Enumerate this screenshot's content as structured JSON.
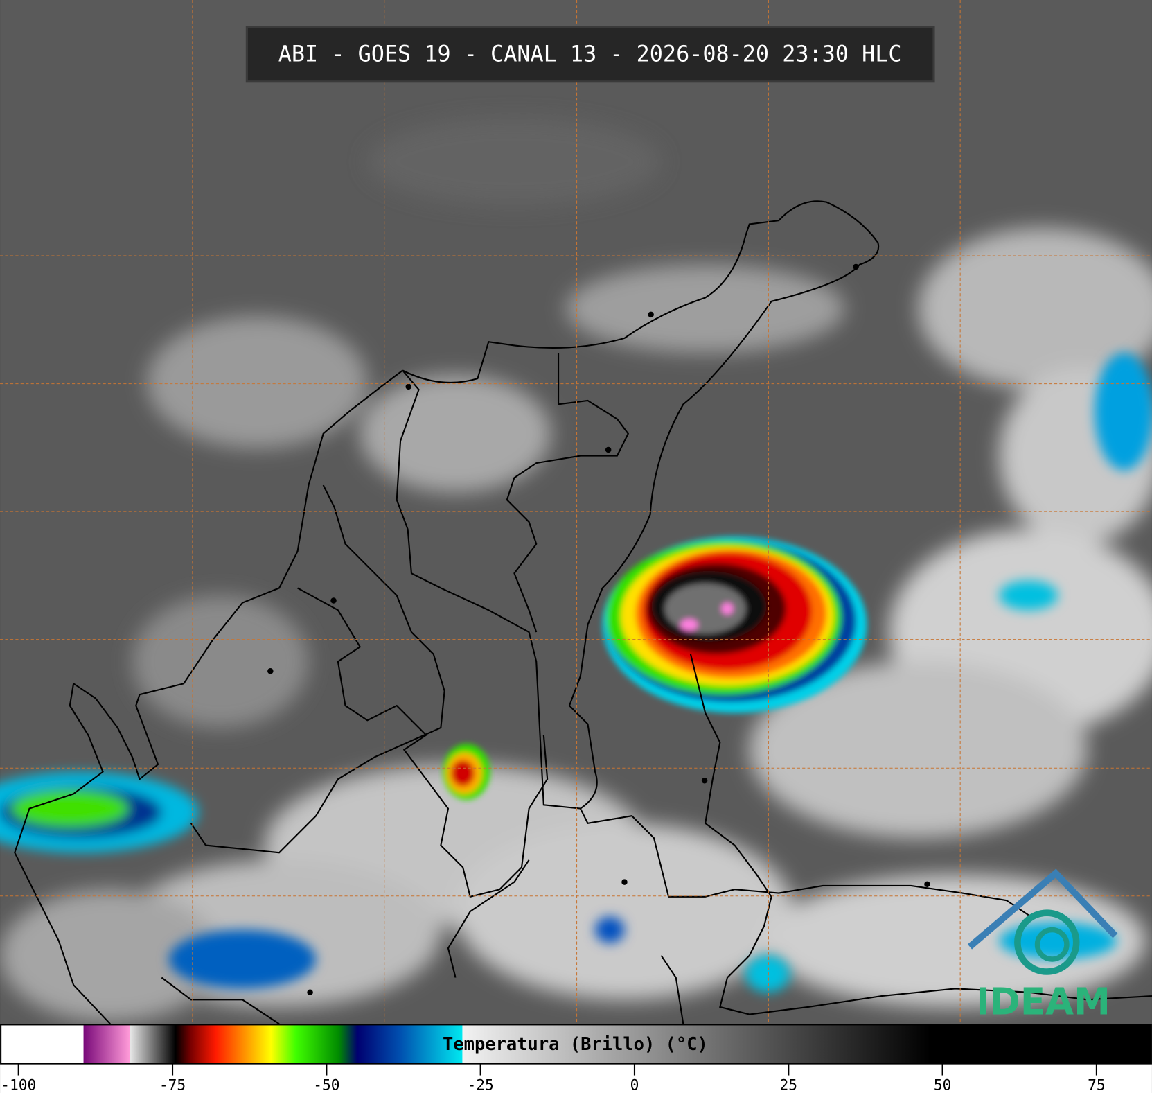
{
  "header": {
    "title": "ABI - GOES 19 - CANAL 13 - 2026-08-20 23:30 HLC"
  },
  "colorbar": {
    "label": "Temperatura (Brillo) (°C)",
    "range": [
      -103,
      84
    ],
    "ticks": [
      -100,
      -75,
      -50,
      -25,
      0,
      25,
      50,
      75
    ],
    "stops": [
      {
        "value": -103,
        "color": "#ffffff"
      },
      {
        "value": -89.5,
        "color": "#ffffff"
      },
      {
        "value": -89.4,
        "color": "#7a0a7a"
      },
      {
        "value": -82,
        "color": "#ff9ad8"
      },
      {
        "value": -81.9,
        "color": "#e8e8e8"
      },
      {
        "value": -75.5,
        "color": "#202020"
      },
      {
        "value": -74.5,
        "color": "#000000"
      },
      {
        "value": -72,
        "color": "#7a0000"
      },
      {
        "value": -68,
        "color": "#ff1a00"
      },
      {
        "value": -63,
        "color": "#ff9a00"
      },
      {
        "value": -59,
        "color": "#ffff00"
      },
      {
        "value": -55,
        "color": "#40ff00"
      },
      {
        "value": -48,
        "color": "#008a00"
      },
      {
        "value": -45,
        "color": "#000070"
      },
      {
        "value": -38,
        "color": "#0050b0"
      },
      {
        "value": -28,
        "color": "#00e8f0"
      },
      {
        "value": -27.9,
        "color": "#f2f2f2"
      },
      {
        "value": 48,
        "color": "#000000"
      },
      {
        "value": 84,
        "color": "#000000"
      }
    ]
  },
  "logo": {
    "text": "IDEAM"
  }
}
